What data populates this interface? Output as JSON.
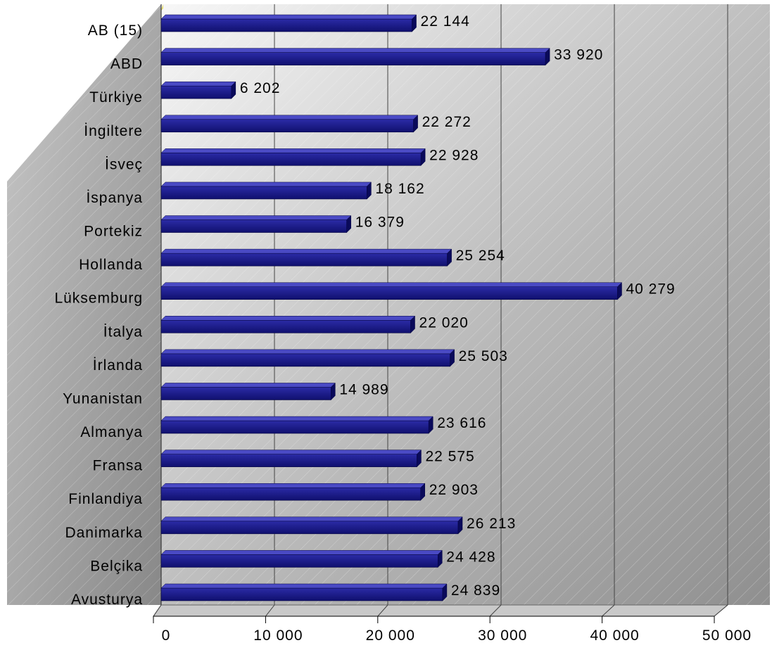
{
  "chart_data": {
    "type": "bar",
    "orientation": "horizontal",
    "categories": [
      "AB (15)",
      "ABD",
      "Türkiye",
      "İngiltere",
      "İsveç",
      "İspanya",
      "Portekiz",
      "Hollanda",
      "Lüksemburg",
      "İtalya",
      "İrlanda",
      "Yunanistan",
      "Almanya",
      "Fransa",
      "Finlandiya",
      "Danimarka",
      "Belçika",
      "Avusturya"
    ],
    "values": [
      22144,
      33920,
      6202,
      22272,
      22928,
      18162,
      16379,
      25254,
      40279,
      22020,
      25503,
      14989,
      23616,
      22575,
      22903,
      26213,
      24428,
      24839
    ],
    "value_labels": [
      "22 144",
      "33 920",
      "6 202",
      "22 272",
      "22 928",
      "18 162",
      "16 379",
      "25 254",
      "40 279",
      "22 020",
      "25 503",
      "14 989",
      "23 616",
      "22 575",
      "22 903",
      "26 213",
      "24 428",
      "24 839"
    ],
    "xticks": [
      "0",
      "10 000",
      "20 000",
      "30 000",
      "40 000",
      "50 000"
    ],
    "xlim": [
      0,
      50000
    ],
    "title": "",
    "xlabel": "",
    "ylabel": "",
    "grid": true,
    "legend": "none",
    "bar_color": "#1a1a8c"
  }
}
